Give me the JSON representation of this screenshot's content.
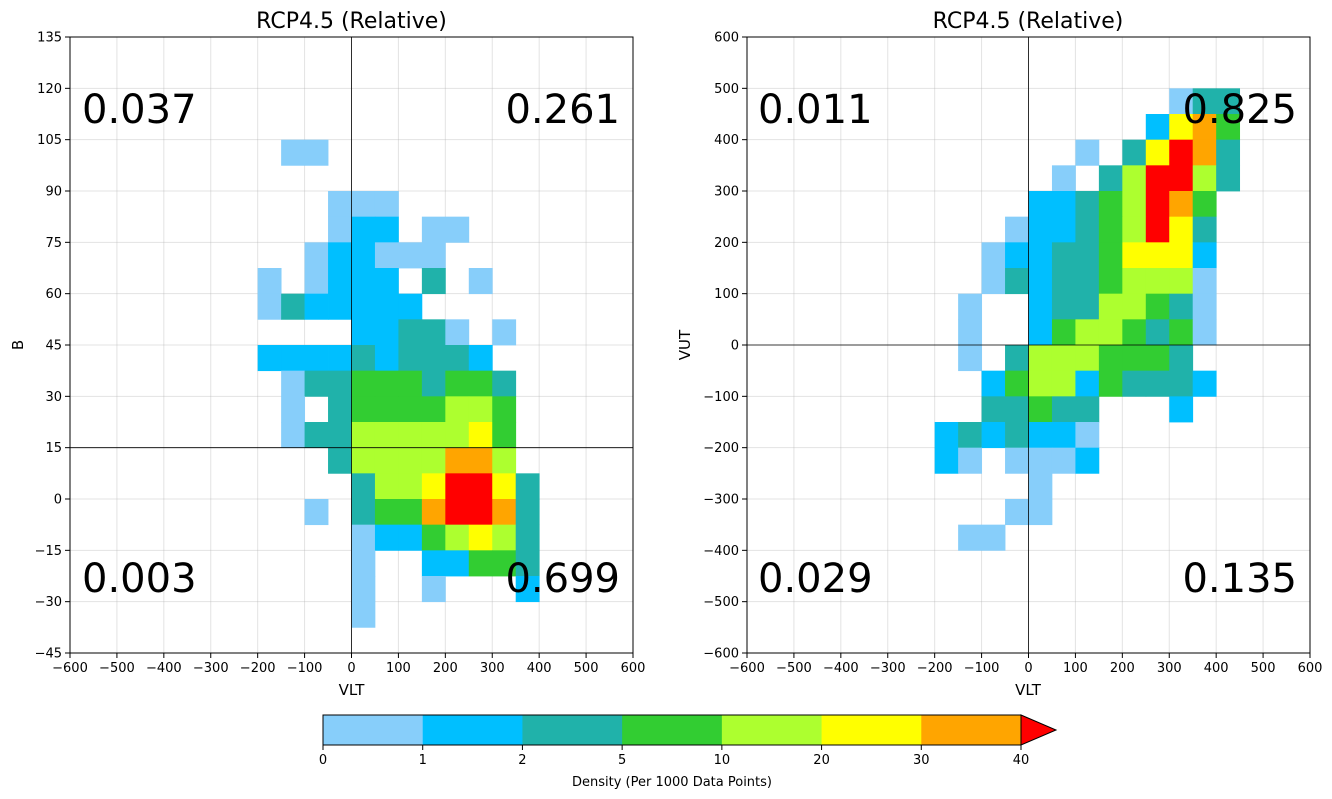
{
  "colors": {
    "bins": [
      "#87cefa",
      "#00bfff",
      "#20b2aa",
      "#32cd32",
      "#adff2f",
      "#ffff00",
      "#ffa500",
      "#ff0000"
    ],
    "grid": "#b0b0b0",
    "axis": "#000000"
  },
  "colorbar": {
    "label": "Density (Per 1000 Data Points)",
    "ticks": [
      "0",
      "1",
      "2",
      "5",
      "10",
      "20",
      "30",
      "40"
    ],
    "boundaries": [
      0,
      1,
      2,
      5,
      10,
      20,
      30,
      40
    ],
    "extend": "max"
  },
  "chart_data": [
    {
      "type": "heatmap",
      "title": "RCP4.5 (Relative)",
      "xlabel": "VLT",
      "ylabel": "B",
      "xlim": [
        -600,
        600
      ],
      "ylim": [
        -45,
        135
      ],
      "xticks": [
        -600,
        -500,
        -400,
        -300,
        -200,
        -100,
        0,
        100,
        200,
        300,
        400,
        500,
        600
      ],
      "yticks": [
        -45,
        -30,
        -15,
        0,
        15,
        30,
        45,
        60,
        75,
        90,
        105,
        120,
        135
      ],
      "grid": true,
      "divider_x": 0,
      "divider_y": 15,
      "bin_width": [
        50,
        7.5
      ],
      "quadrants": {
        "top_left": "0.037",
        "top_right": "0.261",
        "bottom_left": "0.003",
        "bottom_right": "0.699"
      },
      "cells": [
        [
          -150,
          97.5,
          0
        ],
        [
          -100,
          97.5,
          0
        ],
        [
          -50,
          82.5,
          0
        ],
        [
          0,
          82.5,
          0
        ],
        [
          50,
          82.5,
          0
        ],
        [
          -50,
          75,
          0
        ],
        [
          0,
          75,
          1
        ],
        [
          50,
          75,
          1
        ],
        [
          150,
          75,
          0
        ],
        [
          200,
          75,
          0
        ],
        [
          -100,
          67.5,
          0
        ],
        [
          -50,
          67.5,
          1
        ],
        [
          0,
          67.5,
          1
        ],
        [
          50,
          67.5,
          0
        ],
        [
          100,
          67.5,
          0
        ],
        [
          150,
          67.5,
          0
        ],
        [
          -200,
          60,
          0
        ],
        [
          -100,
          60,
          0
        ],
        [
          -50,
          60,
          1
        ],
        [
          0,
          60,
          1
        ],
        [
          50,
          60,
          1
        ],
        [
          150,
          60,
          2
        ],
        [
          250,
          60,
          0
        ],
        [
          -200,
          52.5,
          0
        ],
        [
          -150,
          52.5,
          2
        ],
        [
          -100,
          52.5,
          1
        ],
        [
          -50,
          52.5,
          1
        ],
        [
          0,
          52.5,
          1
        ],
        [
          50,
          52.5,
          1
        ],
        [
          100,
          52.5,
          1
        ],
        [
          0,
          45,
          1
        ],
        [
          50,
          45,
          1
        ],
        [
          100,
          45,
          2
        ],
        [
          150,
          45,
          2
        ],
        [
          200,
          45,
          0
        ],
        [
          300,
          45,
          0
        ],
        [
          -200,
          37.5,
          1
        ],
        [
          -150,
          37.5,
          1
        ],
        [
          -100,
          37.5,
          1
        ],
        [
          -50,
          37.5,
          1
        ],
        [
          0,
          37.5,
          2
        ],
        [
          50,
          37.5,
          1
        ],
        [
          100,
          37.5,
          2
        ],
        [
          150,
          37.5,
          2
        ],
        [
          200,
          37.5,
          2
        ],
        [
          250,
          37.5,
          1
        ],
        [
          -150,
          30,
          0
        ],
        [
          -100,
          30,
          2
        ],
        [
          -50,
          30,
          2
        ],
        [
          0,
          30,
          3
        ],
        [
          50,
          30,
          3
        ],
        [
          100,
          30,
          3
        ],
        [
          150,
          30,
          2
        ],
        [
          200,
          30,
          3
        ],
        [
          250,
          30,
          3
        ],
        [
          300,
          30,
          2
        ],
        [
          -150,
          22.5,
          0
        ],
        [
          -50,
          22.5,
          2
        ],
        [
          0,
          22.5,
          3
        ],
        [
          50,
          22.5,
          3
        ],
        [
          100,
          22.5,
          3
        ],
        [
          150,
          22.5,
          3
        ],
        [
          200,
          22.5,
          4
        ],
        [
          250,
          22.5,
          4
        ],
        [
          300,
          22.5,
          3
        ],
        [
          -150,
          15,
          0
        ],
        [
          -100,
          15,
          2
        ],
        [
          -50,
          15,
          2
        ],
        [
          0,
          15,
          4
        ],
        [
          50,
          15,
          4
        ],
        [
          100,
          15,
          4
        ],
        [
          150,
          15,
          4
        ],
        [
          200,
          15,
          4
        ],
        [
          250,
          15,
          5
        ],
        [
          300,
          15,
          3
        ],
        [
          -50,
          7.5,
          2
        ],
        [
          0,
          7.5,
          4
        ],
        [
          50,
          7.5,
          4
        ],
        [
          100,
          7.5,
          4
        ],
        [
          150,
          7.5,
          4
        ],
        [
          200,
          7.5,
          6
        ],
        [
          250,
          7.5,
          6
        ],
        [
          300,
          7.5,
          4
        ],
        [
          0,
          0,
          2
        ],
        [
          50,
          0,
          4
        ],
        [
          100,
          0,
          4
        ],
        [
          150,
          0,
          5
        ],
        [
          200,
          0,
          7
        ],
        [
          250,
          0,
          7
        ],
        [
          300,
          0,
          5
        ],
        [
          350,
          0,
          2
        ],
        [
          -100,
          -7.5,
          0
        ],
        [
          0,
          -7.5,
          2
        ],
        [
          50,
          -7.5,
          3
        ],
        [
          100,
          -7.5,
          3
        ],
        [
          150,
          -7.5,
          6
        ],
        [
          200,
          -7.5,
          7
        ],
        [
          250,
          -7.5,
          7
        ],
        [
          300,
          -7.5,
          6
        ],
        [
          350,
          -7.5,
          2
        ],
        [
          0,
          -15,
          0
        ],
        [
          50,
          -15,
          1
        ],
        [
          100,
          -15,
          1
        ],
        [
          150,
          -15,
          3
        ],
        [
          200,
          -15,
          4
        ],
        [
          250,
          -15,
          5
        ],
        [
          300,
          -15,
          4
        ],
        [
          350,
          -15,
          2
        ],
        [
          0,
          -22.5,
          0
        ],
        [
          150,
          -22.5,
          1
        ],
        [
          200,
          -22.5,
          1
        ],
        [
          250,
          -22.5,
          3
        ],
        [
          300,
          -22.5,
          3
        ],
        [
          350,
          -22.5,
          2
        ],
        [
          0,
          -30,
          0
        ],
        [
          150,
          -30,
          0
        ],
        [
          350,
          -30,
          1
        ],
        [
          0,
          -37.5,
          0
        ]
      ]
    },
    {
      "type": "heatmap",
      "title": "RCP4.5 (Relative)",
      "xlabel": "VLT",
      "ylabel": "VUT",
      "xlim": [
        -600,
        600
      ],
      "ylim": [
        -600,
        600
      ],
      "xticks": [
        -600,
        -500,
        -400,
        -300,
        -200,
        -100,
        0,
        100,
        200,
        300,
        400,
        500,
        600
      ],
      "yticks": [
        -600,
        -500,
        -400,
        -300,
        -200,
        -100,
        0,
        100,
        200,
        300,
        400,
        500,
        600
      ],
      "grid": true,
      "divider_x": 0,
      "divider_y": 0,
      "bin_width": [
        50,
        50
      ],
      "quadrants": {
        "top_left": "0.011",
        "top_right": "0.825",
        "bottom_left": "0.029",
        "bottom_right": "0.135"
      },
      "cells": [
        [
          300,
          450,
          0
        ],
        [
          350,
          450,
          2
        ],
        [
          400,
          450,
          2
        ],
        [
          250,
          400,
          1
        ],
        [
          300,
          400,
          5
        ],
        [
          350,
          400,
          6
        ],
        [
          400,
          400,
          3
        ],
        [
          100,
          350,
          0
        ],
        [
          200,
          350,
          2
        ],
        [
          250,
          350,
          5
        ],
        [
          300,
          350,
          7
        ],
        [
          350,
          350,
          6
        ],
        [
          400,
          350,
          2
        ],
        [
          50,
          300,
          0
        ],
        [
          150,
          300,
          2
        ],
        [
          200,
          300,
          4
        ],
        [
          250,
          300,
          7
        ],
        [
          300,
          300,
          7
        ],
        [
          350,
          300,
          4
        ],
        [
          400,
          300,
          2
        ],
        [
          0,
          250,
          1
        ],
        [
          50,
          250,
          1
        ],
        [
          100,
          250,
          2
        ],
        [
          150,
          250,
          3
        ],
        [
          200,
          250,
          4
        ],
        [
          250,
          250,
          7
        ],
        [
          300,
          250,
          6
        ],
        [
          350,
          250,
          3
        ],
        [
          -50,
          200,
          0
        ],
        [
          0,
          200,
          1
        ],
        [
          50,
          200,
          1
        ],
        [
          100,
          200,
          2
        ],
        [
          150,
          200,
          3
        ],
        [
          200,
          200,
          4
        ],
        [
          250,
          200,
          7
        ],
        [
          300,
          200,
          5
        ],
        [
          350,
          200,
          2
        ],
        [
          -100,
          150,
          0
        ],
        [
          -50,
          150,
          1
        ],
        [
          0,
          150,
          1
        ],
        [
          50,
          150,
          2
        ],
        [
          100,
          150,
          2
        ],
        [
          150,
          150,
          3
        ],
        [
          200,
          150,
          5
        ],
        [
          250,
          150,
          5
        ],
        [
          300,
          150,
          5
        ],
        [
          350,
          150,
          1
        ],
        [
          -100,
          100,
          0
        ],
        [
          -50,
          100,
          2
        ],
        [
          0,
          100,
          1
        ],
        [
          50,
          100,
          2
        ],
        [
          100,
          100,
          2
        ],
        [
          150,
          100,
          3
        ],
        [
          200,
          100,
          4
        ],
        [
          250,
          100,
          4
        ],
        [
          300,
          100,
          4
        ],
        [
          350,
          100,
          0
        ],
        [
          -150,
          50,
          0
        ],
        [
          0,
          50,
          1
        ],
        [
          50,
          50,
          2
        ],
        [
          100,
          50,
          2
        ],
        [
          150,
          50,
          4
        ],
        [
          200,
          50,
          4
        ],
        [
          250,
          50,
          3
        ],
        [
          300,
          50,
          2
        ],
        [
          350,
          50,
          0
        ],
        [
          -150,
          0,
          0
        ],
        [
          0,
          0,
          1
        ],
        [
          50,
          0,
          3
        ],
        [
          100,
          0,
          4
        ],
        [
          150,
          0,
          4
        ],
        [
          200,
          0,
          3
        ],
        [
          250,
          0,
          2
        ],
        [
          300,
          0,
          3
        ],
        [
          350,
          0,
          0
        ],
        [
          -150,
          -50,
          0
        ],
        [
          -50,
          -50,
          2
        ],
        [
          0,
          -50,
          4
        ],
        [
          50,
          -50,
          4
        ],
        [
          100,
          -50,
          4
        ],
        [
          150,
          -50,
          3
        ],
        [
          200,
          -50,
          3
        ],
        [
          250,
          -50,
          3
        ],
        [
          300,
          -50,
          2
        ],
        [
          -100,
          -100,
          1
        ],
        [
          -50,
          -100,
          3
        ],
        [
          0,
          -100,
          4
        ],
        [
          50,
          -100,
          4
        ],
        [
          100,
          -100,
          1
        ],
        [
          150,
          -100,
          3
        ],
        [
          200,
          -100,
          2
        ],
        [
          250,
          -100,
          2
        ],
        [
          300,
          -100,
          2
        ],
        [
          350,
          -100,
          1
        ],
        [
          -100,
          -150,
          2
        ],
        [
          -50,
          -150,
          2
        ],
        [
          0,
          -150,
          3
        ],
        [
          50,
          -150,
          2
        ],
        [
          100,
          -150,
          2
        ],
        [
          300,
          -150,
          1
        ],
        [
          -200,
          -200,
          1
        ],
        [
          -150,
          -200,
          2
        ],
        [
          -100,
          -200,
          1
        ],
        [
          -50,
          -200,
          2
        ],
        [
          0,
          -200,
          1
        ],
        [
          50,
          -200,
          1
        ],
        [
          100,
          -200,
          0
        ],
        [
          -200,
          -250,
          1
        ],
        [
          -150,
          -250,
          0
        ],
        [
          -50,
          -250,
          0
        ],
        [
          0,
          -250,
          0
        ],
        [
          50,
          -250,
          0
        ],
        [
          100,
          -250,
          1
        ],
        [
          0,
          -300,
          0
        ],
        [
          -50,
          -350,
          0
        ],
        [
          0,
          -350,
          0
        ],
        [
          -150,
          -400,
          0
        ],
        [
          -100,
          -400,
          0
        ]
      ]
    }
  ]
}
